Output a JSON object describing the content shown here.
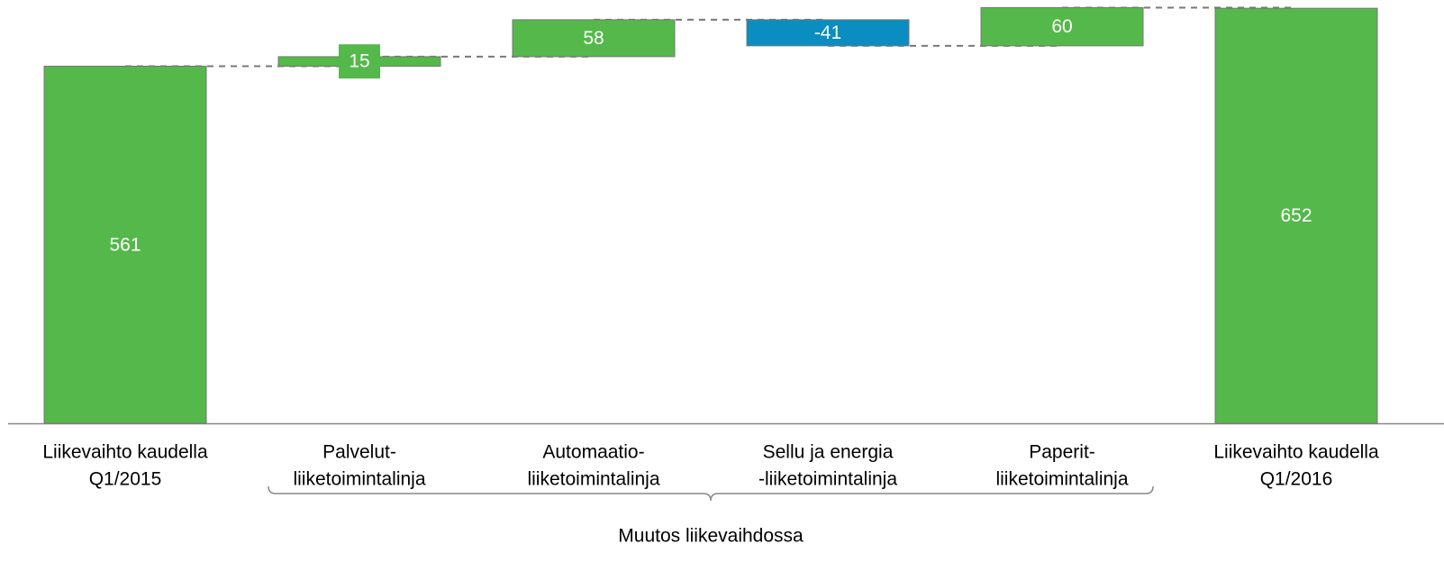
{
  "chart_data": {
    "type": "waterfall",
    "categories": [
      [
        "Liikevaihto kaudella",
        "Q1/2015"
      ],
      [
        "Palvelut-",
        "liiketoimintalinja"
      ],
      [
        "Automaatio-",
        "liiketoimintalinja"
      ],
      [
        "Sellu ja energia",
        "-liiketoimintalinja"
      ],
      [
        "Paperit-",
        "liiketoimintalinja"
      ],
      [
        "Liikevaihto kaudella",
        "Q1/2016"
      ]
    ],
    "values": [
      561,
      15,
      58,
      -41,
      60,
      652
    ],
    "color": "#55b84a",
    "negative_color": "#0a8dc1",
    "ylim": [
      0,
      665
    ],
    "annotation": "Muutos liikevaihdossa"
  }
}
